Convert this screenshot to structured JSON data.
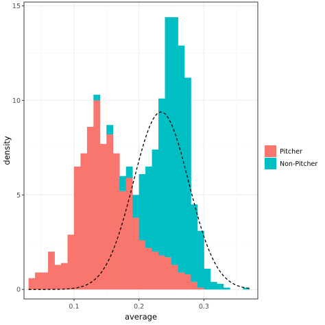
{
  "chart_data": {
    "type": "histogram",
    "xlabel": "average",
    "ylabel": "density",
    "xlim": [
      0.023,
      0.383
    ],
    "ylim": [
      -0.5,
      15.2
    ],
    "xticks": [
      0.1,
      0.2,
      0.3
    ],
    "xtick_labels": [
      "0.1",
      "0.2",
      "0.3"
    ],
    "yticks": [
      0,
      5,
      10,
      15
    ],
    "ytick_labels": [
      "0",
      "5",
      "10",
      "15"
    ],
    "grid": true,
    "legend_position": "right",
    "stacked": true,
    "bin_width": 0.01,
    "bin_starts": [
      0.03,
      0.04,
      0.05,
      0.06,
      0.07,
      0.08,
      0.09,
      0.1,
      0.11,
      0.12,
      0.13,
      0.14,
      0.15,
      0.16,
      0.17,
      0.18,
      0.19,
      0.2,
      0.21,
      0.22,
      0.23,
      0.24,
      0.25,
      0.26,
      0.27,
      0.28,
      0.29,
      0.3,
      0.31,
      0.32,
      0.33,
      0.34,
      0.35,
      0.36
    ],
    "series": [
      {
        "name": "Pitcher",
        "color": "#F8766D",
        "values": [
          0.6,
          0.9,
          0.9,
          2.0,
          1.3,
          1.4,
          2.9,
          6.5,
          7.2,
          8.6,
          10.0,
          7.7,
          8.2,
          7.2,
          5.2,
          5.9,
          3.8,
          2.6,
          2.2,
          2.0,
          1.8,
          1.7,
          1.3,
          0.9,
          0.8,
          0.4,
          0.1,
          0.0,
          0.0,
          0.0,
          0.0,
          0.0,
          0.0,
          0.0
        ]
      },
      {
        "name": "Non-Pitcher",
        "color": "#00BFC4",
        "values": [
          0.0,
          0.0,
          0.0,
          0.0,
          0.0,
          0.0,
          0.0,
          0.0,
          0.0,
          0.0,
          0.3,
          0.0,
          0.5,
          0.0,
          0.8,
          0.6,
          1.2,
          3.5,
          4.3,
          5.4,
          8.3,
          12.7,
          13.1,
          12.0,
          10.4,
          4.1,
          3.0,
          1.1,
          0.4,
          0.3,
          0.1,
          0.0,
          0.0,
          0.1
        ]
      }
    ],
    "density_curve": {
      "style": "dashed",
      "color": "#000000",
      "mean": 0.234,
      "sd": 0.0425,
      "x_range": [
        0.03,
        0.37
      ]
    }
  }
}
